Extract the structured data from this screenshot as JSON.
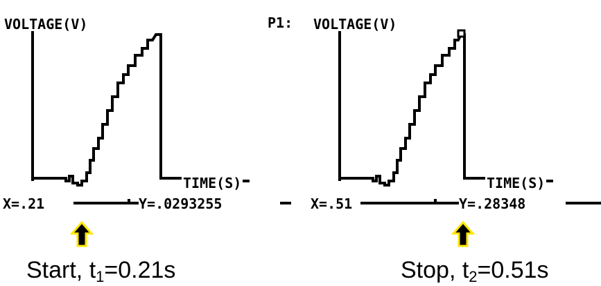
{
  "left_screen": {
    "y_label": "VOLTAGE(V)",
    "x_label": "TIME(S)",
    "cursor_x": "X=.21",
    "cursor_y": "Y=.0293255"
  },
  "right_screen": {
    "plot_label": "P1:",
    "y_label": "VOLTAGE(V)",
    "x_label": "TIME(S)",
    "cursor_x": "X=.51",
    "cursor_y": "Y=.28348"
  },
  "annotations": [
    {
      "text": "Start, t",
      "subscript": "1",
      "suffix": "=0.21s"
    },
    {
      "text": "Stop, t",
      "subscript": "2",
      "suffix": "=0.51s"
    }
  ]
}
